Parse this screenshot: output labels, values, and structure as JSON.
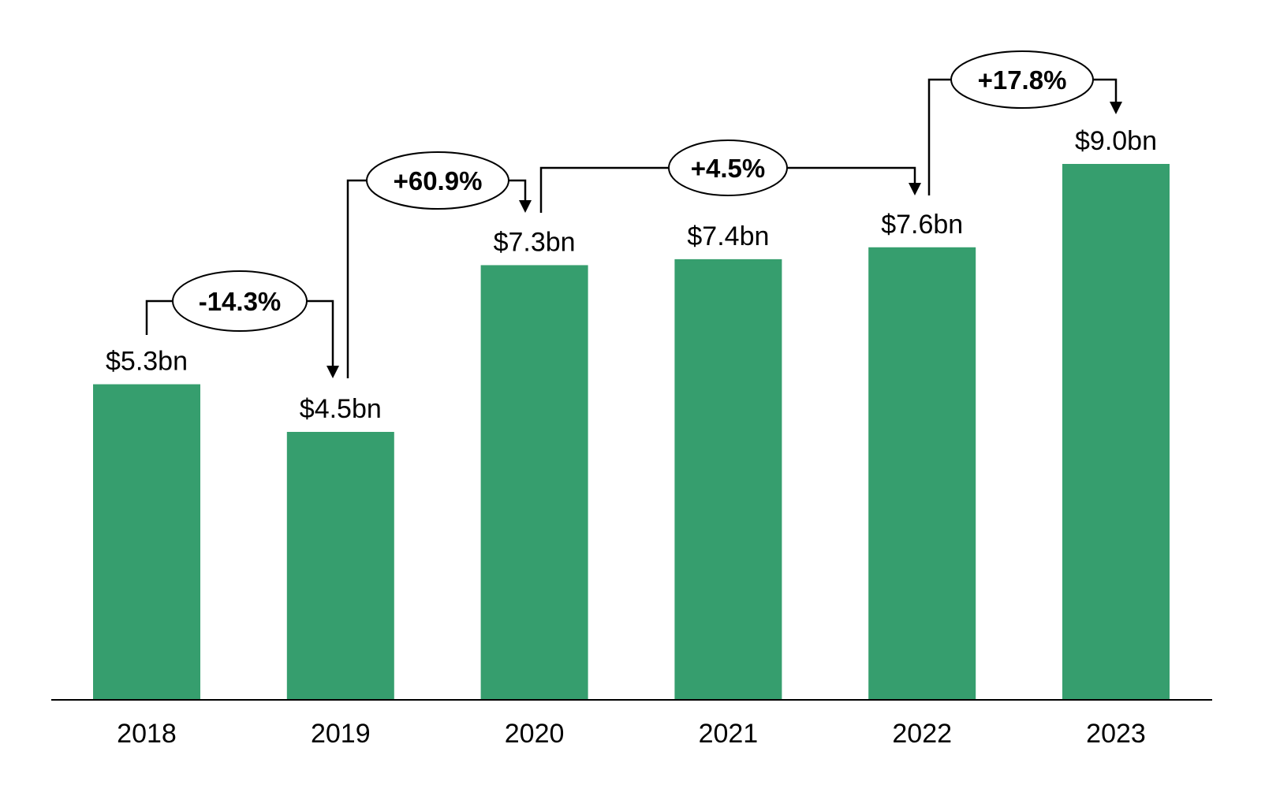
{
  "chart_data": {
    "type": "bar",
    "title": "",
    "xlabel": "",
    "ylabel": "",
    "categories": [
      "2018",
      "2019",
      "2020",
      "2021",
      "2022",
      "2023"
    ],
    "values": [
      5.3,
      4.5,
      7.3,
      7.4,
      7.6,
      9.0
    ],
    "data_labels": [
      "$5.3bn",
      "$4.5bn",
      "$7.3bn",
      "$7.4bn",
      "$7.6bn",
      "$9.0bn"
    ],
    "ylim": [
      0,
      9.0
    ],
    "grid": false,
    "bar_color": "#369E6E",
    "annotations": [
      {
        "from": "2018",
        "to": "2019",
        "label": "-14.3%"
      },
      {
        "from": "2019",
        "to": "2020",
        "label": "+60.9%"
      },
      {
        "from": "2020",
        "to": "2022",
        "label": "+4.5%"
      },
      {
        "from": "2022",
        "to": "2023",
        "label": "+17.8%"
      }
    ]
  }
}
